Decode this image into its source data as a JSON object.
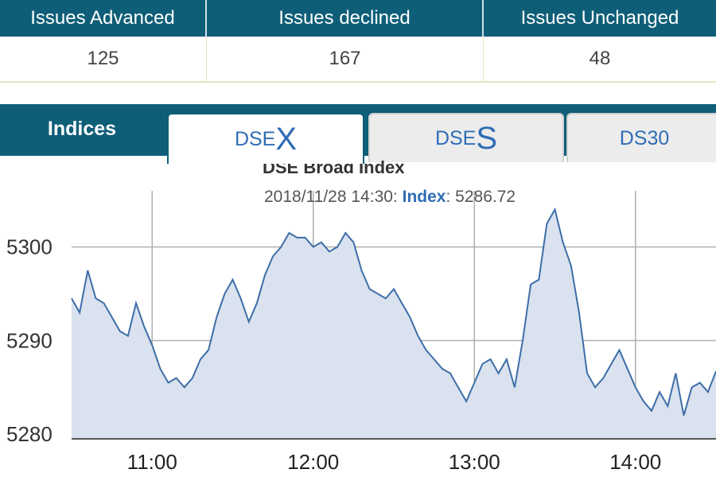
{
  "stats": {
    "headers": [
      "Issues Advanced",
      "Issues declined",
      "Issues Unchanged"
    ],
    "values": [
      "125",
      "167",
      "48"
    ]
  },
  "tabs": {
    "indices_label": "Indices",
    "dsex": {
      "prefix": "DSE",
      "suffix": "X"
    },
    "dses": {
      "prefix": "DSE",
      "suffix": "S"
    },
    "ds30": "DS30"
  },
  "colors": {
    "header_bg": "#0f5e78",
    "line": "#3d6ea8",
    "area": "#d9e2ee",
    "accent_text": "#2f6db5"
  },
  "tooltip": {
    "datetime": "2018/11/28 14:30:",
    "key": "Index",
    "sep": ":",
    "value": "5286.72"
  },
  "chart_data": {
    "type": "area",
    "title": "DSE Broad Index",
    "xlabel": "",
    "ylabel": "",
    "xlim": [
      "10:30",
      "14:30"
    ],
    "ylim": [
      5279.5,
      5306
    ],
    "y_ticks": [
      "5280",
      "5290",
      "5300"
    ],
    "x_ticks": [
      "11:00",
      "12:00",
      "13:00",
      "14:00"
    ],
    "grid": true,
    "series": [
      {
        "x": [
          "10:30",
          "10:33",
          "10:36",
          "10:39",
          "10:42",
          "10:45",
          "10:48",
          "10:51",
          "10:54",
          "10:57",
          "11:00",
          "11:03",
          "11:06",
          "11:09",
          "11:12",
          "11:15",
          "11:18",
          "11:21",
          "11:24",
          "11:27",
          "11:30",
          "11:33",
          "11:36",
          "11:39",
          "11:42",
          "11:45",
          "11:48",
          "11:51",
          "11:54",
          "11:57",
          "12:00",
          "12:03",
          "12:06",
          "12:09",
          "12:12",
          "12:15",
          "12:18",
          "12:21",
          "12:24",
          "12:27",
          "12:30",
          "12:33",
          "12:36",
          "12:39",
          "12:42",
          "12:45",
          "12:48",
          "12:51",
          "12:54",
          "12:57",
          "13:00",
          "13:03",
          "13:06",
          "13:09",
          "13:12",
          "13:15",
          "13:18",
          "13:21",
          "13:24",
          "13:27",
          "13:30",
          "13:33",
          "13:36",
          "13:39",
          "13:42",
          "13:45",
          "13:48",
          "13:51",
          "13:54",
          "13:57",
          "14:00",
          "14:03",
          "14:06",
          "14:09",
          "14:12",
          "14:15",
          "14:18",
          "14:21",
          "14:24",
          "14:27",
          "14:30"
        ],
        "values": [
          5294.5,
          5293,
          5297.5,
          5294.5,
          5294,
          5292.5,
          5291,
          5290.5,
          5294,
          5291.5,
          5289.5,
          5287,
          5285.5,
          5286,
          5285,
          5286,
          5288,
          5289,
          5292.5,
          5295,
          5296.5,
          5294.5,
          5292,
          5294,
          5297,
          5299,
          5300,
          5301.5,
          5301,
          5301,
          5300,
          5300.5,
          5299.5,
          5300,
          5301.5,
          5300.5,
          5297.5,
          5295.5,
          5295,
          5294.5,
          5295.5,
          5294,
          5292.5,
          5290.5,
          5289,
          5288,
          5287,
          5286.5,
          5285,
          5283.5,
          5285.5,
          5287.5,
          5288,
          5286.5,
          5288,
          5285,
          5290,
          5296,
          5296.5,
          5302.5,
          5304,
          5300.5,
          5298,
          5293,
          5286.5,
          5285,
          5286,
          5287.5,
          5289,
          5287,
          5285,
          5283.5,
          5282.5,
          5284.5,
          5283,
          5286.5,
          5282,
          5285,
          5285.5,
          5284.5,
          5286.72
        ]
      }
    ]
  }
}
